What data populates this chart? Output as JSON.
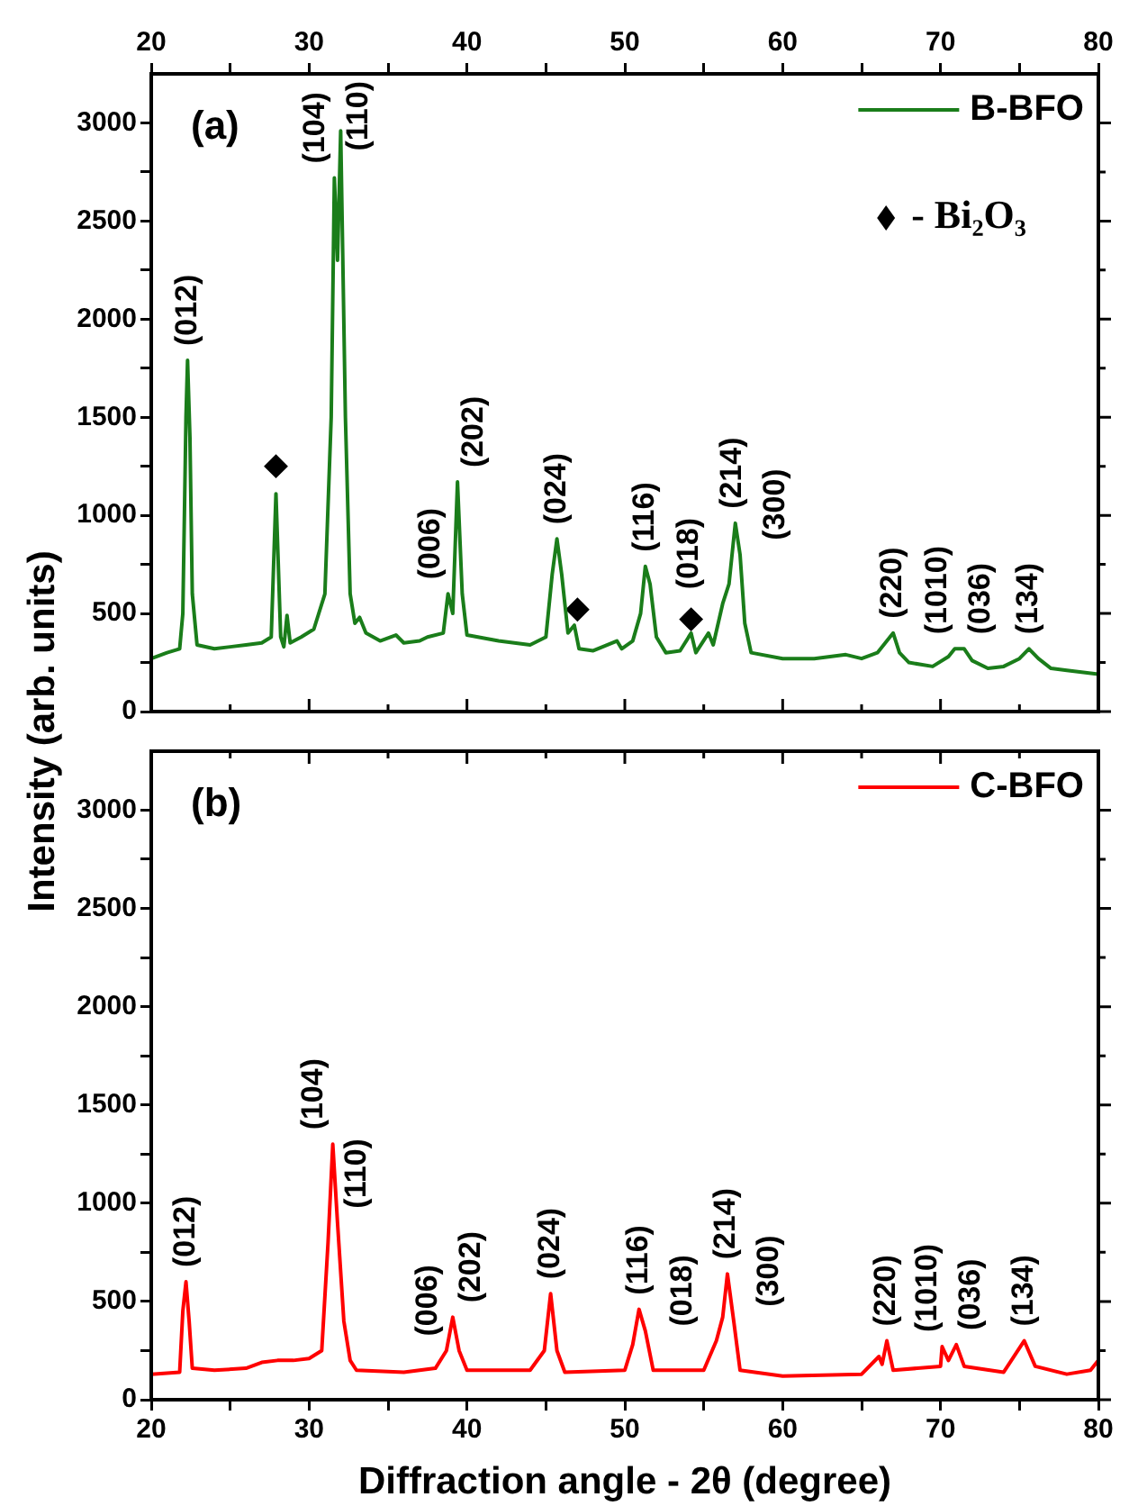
{
  "chart_data": [
    {
      "type": "line",
      "ylabel": "Intensity (arb. units)",
      "xlim": [
        20,
        80
      ],
      "xticks": [
        20,
        {
          "value": 25,
          "label": null
        },
        30,
        {
          "value": 35,
          "label": null
        },
        40,
        {
          "value": 45,
          "label": null
        },
        50,
        {
          "value": 55,
          "label": null
        },
        60,
        {
          "value": 65,
          "label": null
        },
        70,
        {
          "value": 75,
          "label": null
        },
        80
      ],
      "ylim": [
        0,
        3250
      ],
      "yticks": [
        0,
        {
          "value": 250,
          "label": null
        },
        500,
        {
          "value": 750,
          "label": null
        },
        1000,
        {
          "value": 1250,
          "label": null
        },
        1500,
        {
          "value": 1750,
          "label": null
        },
        2000,
        {
          "value": 2250,
          "label": null
        },
        2500,
        {
          "value": 2750,
          "label": null
        },
        3000
      ],
      "legend": "top right",
      "series": [
        {
          "name": "B-BFO",
          "color": "#1a7d1a",
          "x": [
            20,
            21,
            21.8,
            22.0,
            22.2,
            22.3,
            22.45,
            22.6,
            22.9,
            24,
            25,
            26,
            27,
            27.6,
            27.9,
            28.2,
            28.4,
            28.6,
            28.8,
            29.5,
            30.3,
            31.0,
            31.4,
            31.6,
            31.8,
            32.0,
            32.3,
            32.6,
            32.9,
            33.2,
            33.6,
            34.5,
            35.5,
            36,
            37,
            37.5,
            38.5,
            38.8,
            39.1,
            39.4,
            39.7,
            40,
            42,
            44,
            45.0,
            45.4,
            45.7,
            46.0,
            46.4,
            46.8,
            47.1,
            48,
            49.5,
            49.8,
            50.5,
            51.0,
            51.3,
            51.6,
            52.0,
            52.6,
            53.5,
            54.2,
            54.5,
            55.3,
            55.6,
            56.2,
            56.6,
            57.0,
            57.3,
            57.6,
            58.0,
            60,
            62,
            64,
            65,
            66,
            66.5,
            67.0,
            67.4,
            68,
            69.5,
            70.5,
            70.9,
            71.5,
            72.0,
            73,
            74,
            75.0,
            75.6,
            76.2,
            77,
            78,
            80
          ],
          "values": [
            270,
            300,
            320,
            500,
            1500,
            1790,
            1400,
            600,
            340,
            320,
            330,
            340,
            350,
            380,
            1110,
            380,
            330,
            490,
            350,
            380,
            420,
            600,
            1500,
            2720,
            2300,
            2960,
            1500,
            600,
            450,
            480,
            400,
            360,
            390,
            350,
            360,
            380,
            400,
            600,
            500,
            1170,
            600,
            390,
            360,
            340,
            380,
            700,
            880,
            700,
            400,
            440,
            320,
            310,
            360,
            320,
            360,
            500,
            740,
            650,
            380,
            300,
            310,
            400,
            300,
            400,
            340,
            550,
            650,
            960,
            800,
            450,
            300,
            270,
            270,
            290,
            270,
            300,
            350,
            400,
            300,
            250,
            230,
            280,
            320,
            320,
            260,
            220,
            230,
            270,
            320,
            270,
            220,
            210,
            190
          ]
        },
        {
          "name": "- Bi₂O₃",
          "type": "scatter",
          "marker": "diamond",
          "color": "#000000",
          "x": [
            27.9,
            47.0,
            54.2
          ],
          "values": [
            1250,
            520,
            470
          ]
        }
      ],
      "annotations": [
        "(a)",
        {
          "text": "(012)",
          "x": 22.3,
          "y": 1790
        },
        {
          "text": "(104)",
          "x": 31.6,
          "y": 2720
        },
        {
          "text": "(110)",
          "x": 32.0,
          "y": 2960
        },
        {
          "text": "(006)",
          "x": 38.8,
          "y": 600
        },
        {
          "text": "(202)",
          "x": 39.4,
          "y": 1170
        },
        {
          "text": "(024)",
          "x": 45.7,
          "y": 880
        },
        {
          "text": "(116)",
          "x": 51.3,
          "y": 740
        },
        {
          "text": "(018)",
          "x": 56.2,
          "y": 550
        },
        {
          "text": "(214)",
          "x": 57.0,
          "y": 960
        },
        {
          "text": "(300)",
          "x": 57.3,
          "y": 800
        },
        {
          "text": "(220)",
          "x": 67.0,
          "y": 400
        },
        {
          "text": "(1010)",
          "x": 70.9,
          "y": 320
        },
        {
          "text": "(036)",
          "x": 71.5,
          "y": 320
        },
        {
          "text": "(134)",
          "x": 75.6,
          "y": 320
        }
      ]
    },
    {
      "type": "line",
      "xlabel": "Diffraction angle - 2θ (degree)",
      "xlim": [
        20,
        80
      ],
      "xticks": [
        20,
        {
          "value": 25,
          "label": null
        },
        30,
        {
          "value": 35,
          "label": null
        },
        40,
        {
          "value": 45,
          "label": null
        },
        50,
        {
          "value": 55,
          "label": null
        },
        60,
        {
          "value": 65,
          "label": null
        },
        70,
        {
          "value": 75,
          "label": null
        },
        80
      ],
      "ylim": [
        0,
        3300
      ],
      "yticks": [
        0,
        {
          "value": 250,
          "label": null
        },
        500,
        {
          "value": 750,
          "label": null
        },
        1000,
        {
          "value": 1250,
          "label": null
        },
        1500,
        {
          "value": 1750,
          "label": null
        },
        2000,
        {
          "value": 2250,
          "label": null
        },
        2500,
        {
          "value": 2750,
          "label": null
        },
        3000
      ],
      "legend": "top right",
      "series": [
        {
          "name": "C-BFO",
          "color": "#ff0000",
          "x": [
            20,
            21.8,
            22.0,
            22.2,
            22.4,
            22.6,
            24,
            26,
            27,
            28,
            29,
            30,
            30.8,
            31.2,
            31.5,
            31.8,
            32.2,
            32.6,
            33,
            36,
            38,
            38.7,
            39.1,
            39.5,
            40,
            44,
            44.9,
            45.3,
            45.7,
            46.2,
            50,
            50.5,
            50.9,
            51.3,
            51.8,
            55,
            55.8,
            56.2,
            56.5,
            56.9,
            57.3,
            60,
            65,
            66.1,
            66.3,
            66.6,
            67,
            70,
            70.1,
            70.5,
            71.0,
            71.5,
            74,
            75.3,
            76,
            78,
            79.5,
            80
          ],
          "values": [
            130,
            140,
            450,
            600,
            400,
            160,
            150,
            160,
            190,
            200,
            200,
            210,
            250,
            800,
            1300,
            900,
            400,
            200,
            150,
            140,
            160,
            250,
            420,
            250,
            150,
            150,
            250,
            540,
            250,
            140,
            150,
            280,
            460,
            350,
            150,
            150,
            300,
            420,
            640,
            400,
            150,
            120,
            130,
            220,
            180,
            300,
            150,
            170,
            270,
            200,
            280,
            170,
            140,
            300,
            170,
            130,
            150,
            200
          ]
        }
      ],
      "annotations": [
        "(b)",
        {
          "text": "(012)",
          "x": 22.2,
          "y": 600
        },
        {
          "text": "(104)",
          "x": 31.5,
          "y": 1300
        },
        {
          "text": "(110)",
          "x": 31.8,
          "y": 900
        },
        {
          "text": "(006)",
          "x": 38.7,
          "y": 250
        },
        {
          "text": "(202)",
          "x": 39.1,
          "y": 420
        },
        {
          "text": "(024)",
          "x": 45.3,
          "y": 540
        },
        {
          "text": "(116)",
          "x": 50.9,
          "y": 460
        },
        {
          "text": "(018)",
          "x": 55.8,
          "y": 300
        },
        {
          "text": "(214)",
          "x": 56.5,
          "y": 640
        },
        {
          "text": "(300)",
          "x": 56.9,
          "y": 400
        },
        {
          "text": "(220)",
          "x": 66.6,
          "y": 300
        },
        {
          "text": "(1010)",
          "x": 70.1,
          "y": 270
        },
        {
          "text": "(036)",
          "x": 71.0,
          "y": 280
        },
        {
          "text": "(134)",
          "x": 75.3,
          "y": 300
        }
      ]
    }
  ]
}
